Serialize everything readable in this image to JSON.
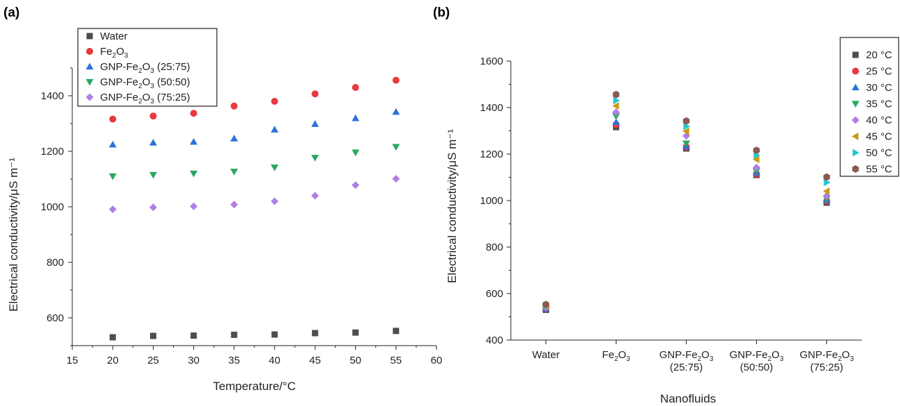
{
  "chart_data": [
    {
      "panel_label": "(a)",
      "type": "scatter",
      "xlabel": "Temperature/°C",
      "ylabel": "Electrical conductivity/μS m⁻¹",
      "xlim": [
        15,
        60
      ],
      "ylim": [
        500,
        1500
      ],
      "x_ticks": [
        "15",
        "20",
        "25",
        "30",
        "35",
        "40",
        "45",
        "50",
        "55",
        "60"
      ],
      "y_ticks": [
        "600",
        "800",
        "1000",
        "1200",
        "1400"
      ],
      "legend_position": "top-left",
      "x": [
        20,
        25,
        30,
        35,
        40,
        45,
        50,
        55
      ],
      "series": [
        {
          "name": "Water",
          "legend": [
            "Water"
          ],
          "marker": "square",
          "color": "#4d4d4f",
          "values": [
            530,
            535,
            536,
            539,
            540,
            545,
            547,
            553
          ]
        },
        {
          "name": "Fe2O3",
          "legend": [
            "Fe",
            "2",
            "O",
            "3",
            ""
          ],
          "marker": "circle",
          "color": "#e8393e",
          "values": [
            1316,
            1327,
            1337,
            1363,
            1380,
            1407,
            1430,
            1456
          ]
        },
        {
          "name": "GNP-Fe2O3 (25:75)",
          "legend": [
            "GNP-Fe",
            "2",
            "O",
            "3",
            " (25:75)"
          ],
          "marker": "triangle-up",
          "color": "#2b72d9",
          "values": [
            1224,
            1231,
            1234,
            1246,
            1278,
            1298,
            1319,
            1342
          ]
        },
        {
          "name": "GNP-Fe2O3 (50:50)",
          "legend": [
            "GNP-Fe",
            "2",
            "O",
            "3",
            " (50:50)"
          ],
          "marker": "triangle-down",
          "color": "#27a860",
          "values": [
            1110,
            1115,
            1120,
            1127,
            1142,
            1177,
            1196,
            1216
          ]
        },
        {
          "name": "GNP-Fe2O3 (75:25)",
          "legend": [
            "GNP-Fe",
            "2",
            "O",
            "3",
            " (75:25)"
          ],
          "marker": "diamond",
          "color": "#b07fe6",
          "values": [
            991,
            998,
            1002,
            1008,
            1020,
            1040,
            1078,
            1101
          ]
        }
      ]
    },
    {
      "panel_label": "(b)",
      "type": "scatter",
      "xlabel": "Nanofluids",
      "ylabel": "Electrical conductivity/μS m⁻¹",
      "ylim": [
        400,
        1600
      ],
      "y_ticks": [
        "400",
        "600",
        "800",
        "1000",
        "1200",
        "1400",
        "1600"
      ],
      "legend_position": "right",
      "categories": [
        {
          "lines": [
            [
              "Water"
            ]
          ]
        },
        {
          "lines": [
            [
              "Fe",
              "2",
              "O",
              "3",
              ""
            ]
          ]
        },
        {
          "lines": [
            [
              "GNP-Fe",
              "2",
              "O",
              "3",
              ""
            ],
            [
              "(25:75)"
            ]
          ]
        },
        {
          "lines": [
            [
              "GNP-Fe",
              "2",
              "O",
              "3",
              ""
            ],
            [
              "(50:50)"
            ]
          ]
        },
        {
          "lines": [
            [
              "GNP-Fe",
              "2",
              "O",
              "3",
              ""
            ],
            [
              "(75:25)"
            ]
          ]
        }
      ],
      "series": [
        {
          "name": "20 °C",
          "marker": "square",
          "color": "#4d4d4f",
          "values": [
            530,
            1316,
            1224,
            1110,
            991
          ]
        },
        {
          "name": "25 °C",
          "marker": "circle",
          "color": "#e8393e",
          "values": [
            535,
            1327,
            1231,
            1115,
            998
          ]
        },
        {
          "name": "30 °C",
          "marker": "triangle-up",
          "color": "#2b72d9",
          "values": [
            536,
            1337,
            1234,
            1120,
            1002
          ]
        },
        {
          "name": "35 °C",
          "marker": "triangle-down",
          "color": "#27a860",
          "values": [
            539,
            1363,
            1246,
            1127,
            1008
          ]
        },
        {
          "name": "40 °C",
          "marker": "diamond",
          "color": "#b07fe6",
          "values": [
            540,
            1380,
            1278,
            1142,
            1020
          ]
        },
        {
          "name": "45 °C",
          "marker": "triangle-left",
          "color": "#c99a12",
          "values": [
            545,
            1407,
            1298,
            1177,
            1040
          ]
        },
        {
          "name": "50 °C",
          "marker": "triangle-right",
          "color": "#22c7d2",
          "values": [
            547,
            1430,
            1319,
            1196,
            1078
          ]
        },
        {
          "name": "55 °C",
          "marker": "hexagon",
          "color": "#8a5a52",
          "values": [
            553,
            1456,
            1342,
            1216,
            1101
          ]
        }
      ]
    }
  ]
}
